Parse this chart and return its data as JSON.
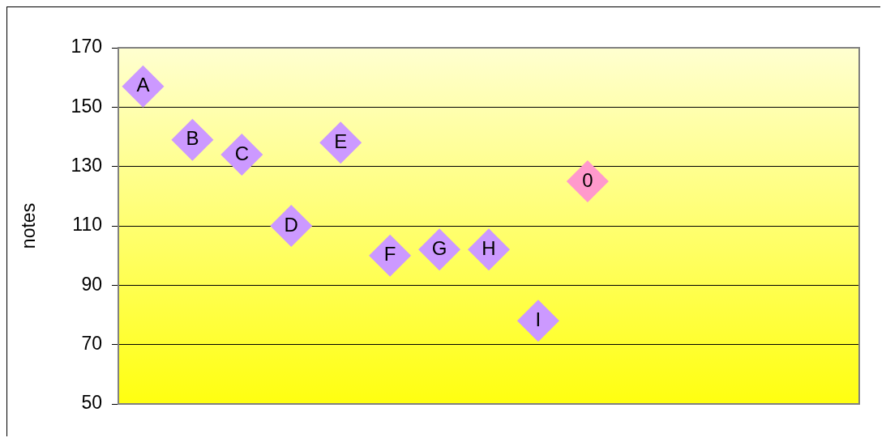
{
  "chart_data": {
    "type": "scatter",
    "ylabel": "notes",
    "categories": [
      null,
      null,
      null,
      null,
      null,
      null,
      null,
      null,
      null,
      null,
      null,
      null,
      null,
      null,
      null
    ],
    "series": [
      {
        "name": "A",
        "color": "#cc99ff",
        "values": [
          157,
          null,
          null,
          null,
          null,
          null,
          null,
          null,
          null,
          null,
          null,
          null,
          null,
          null,
          null
        ]
      },
      {
        "name": "B",
        "color": "#cc99ff",
        "values": [
          null,
          139,
          null,
          null,
          null,
          null,
          null,
          null,
          null,
          null,
          null,
          null,
          null,
          null,
          null
        ]
      },
      {
        "name": "C",
        "color": "#cc99ff",
        "values": [
          null,
          null,
          134,
          null,
          null,
          null,
          null,
          null,
          null,
          null,
          null,
          null,
          null,
          null,
          null
        ]
      },
      {
        "name": "D",
        "color": "#cc99ff",
        "values": [
          null,
          null,
          null,
          110,
          null,
          null,
          null,
          null,
          null,
          null,
          null,
          null,
          null,
          null,
          null
        ]
      },
      {
        "name": "E",
        "color": "#cc99ff",
        "values": [
          null,
          null,
          null,
          null,
          138,
          null,
          null,
          null,
          null,
          null,
          null,
          null,
          null,
          null,
          null
        ]
      },
      {
        "name": "F",
        "color": "#cc99ff",
        "values": [
          null,
          null,
          null,
          null,
          null,
          100,
          null,
          null,
          null,
          null,
          null,
          null,
          null,
          null,
          null
        ]
      },
      {
        "name": "G",
        "color": "#cc99ff",
        "values": [
          null,
          null,
          null,
          null,
          null,
          null,
          102,
          null,
          null,
          null,
          null,
          null,
          null,
          null,
          null
        ]
      },
      {
        "name": "H",
        "color": "#cc99ff",
        "values": [
          null,
          null,
          null,
          null,
          null,
          null,
          null,
          102,
          null,
          null,
          null,
          null,
          null,
          null,
          null
        ]
      },
      {
        "name": "I",
        "color": "#cc99ff",
        "values": [
          null,
          null,
          null,
          null,
          null,
          null,
          null,
          null,
          78,
          null,
          null,
          null,
          null,
          null,
          null
        ]
      },
      {
        "name": "0",
        "color": "#ff99cc",
        "values": [
          null,
          null,
          null,
          null,
          null,
          null,
          null,
          null,
          null,
          125,
          null,
          null,
          null,
          null,
          null
        ]
      }
    ],
    "ylim": [
      50,
      170
    ],
    "yticks": [
      50,
      70,
      90,
      110,
      130,
      150,
      170
    ],
    "tick_labels": "y",
    "grid": "y",
    "marker": "diamond",
    "legend": false
  }
}
